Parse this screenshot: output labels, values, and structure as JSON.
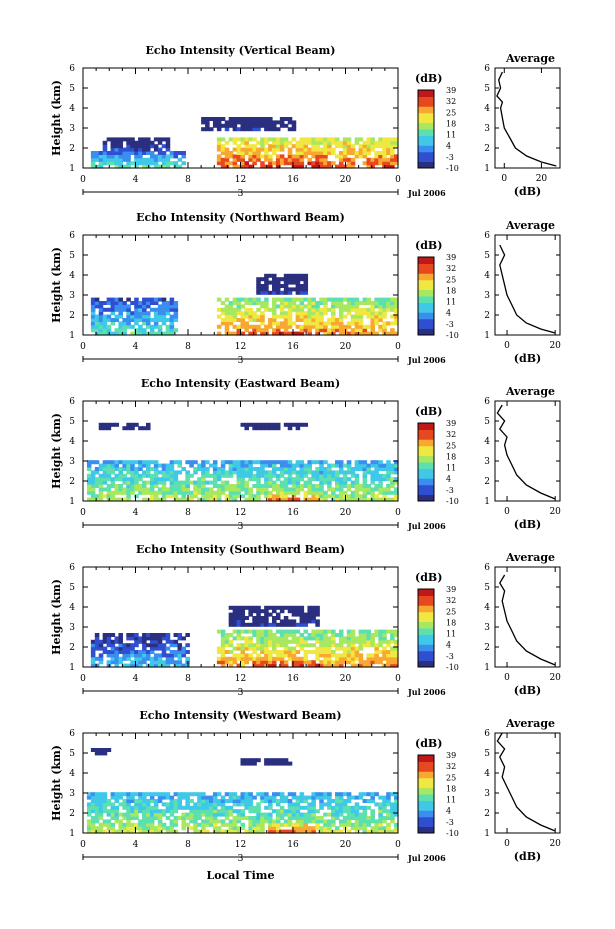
{
  "chart_data": {
    "type": "heatmap",
    "x_unit_label": "Local Time",
    "date_label": "Jul 2006",
    "time_ticks": [
      "0",
      "4",
      "8",
      "12",
      "16",
      "20",
      "0"
    ],
    "time_range": [
      0,
      24
    ],
    "day_label": "3",
    "height_ticks": [
      "1",
      "2",
      "3",
      "4",
      "5",
      "6"
    ],
    "height_range": [
      1,
      6
    ],
    "ylabel": "Height (km)",
    "colorbar": {
      "unit_label": "(dB)",
      "ticks": [
        "39",
        "32",
        "25",
        "18",
        "11",
        "4",
        "-3",
        "-10"
      ],
      "range": [
        -10,
        39
      ],
      "colormap": [
        "#2b2f7f",
        "#2f4fd0",
        "#3a8ef0",
        "#3fc8e8",
        "#5ce0b0",
        "#a8e860",
        "#f0e840",
        "#f8a830",
        "#e84820",
        "#c01818"
      ]
    },
    "panels": [
      {
        "title": "Echo Intensity (Vertical Beam)",
        "avg_title": "Average",
        "avg_xlabel": "(dB)",
        "avg_xticks": [
          "0",
          "20"
        ],
        "avg_xtick_values": [
          0,
          20
        ],
        "avg_xrange": [
          -5,
          30
        ],
        "avg_profile": {
          "height": [
            1.1,
            1.3,
            1.6,
            2.0,
            2.5,
            3.0,
            3.5,
            4.0,
            4.3,
            4.6,
            5.0,
            5.4,
            5.8
          ],
          "db": [
            28,
            20,
            12,
            6,
            3,
            0,
            -1,
            -2,
            -1,
            -4,
            -2,
            -3,
            -1
          ]
        },
        "echo_regions": [
          {
            "t": [
              0.5,
              7.5
            ],
            "h": [
              1.0,
              1.8
            ],
            "peak_db": 12
          },
          {
            "t": [
              1.5,
              6.5
            ],
            "h": [
              1.8,
              2.5
            ],
            "peak_db": -3
          },
          {
            "t": [
              10,
              24
            ],
            "h": [
              1.0,
              2.5
            ],
            "peak_db": 32
          },
          {
            "t": [
              14,
              18
            ],
            "h": [
              1.0,
              1.4
            ],
            "peak_db": 37
          },
          {
            "t": [
              9,
              16
            ],
            "h": [
              2.8,
              3.4
            ],
            "peak_db": -5
          }
        ]
      },
      {
        "title": "Echo Intensity (Northward Beam)",
        "avg_title": "Average",
        "avg_xlabel": "(dB)",
        "avg_xticks": [
          "0",
          "20"
        ],
        "avg_xtick_values": [
          0,
          20
        ],
        "avg_xrange": [
          -5,
          22
        ],
        "avg_profile": {
          "height": [
            1.1,
            1.3,
            1.6,
            2.0,
            2.5,
            3.0,
            3.5,
            4.0,
            4.5,
            5.0,
            5.5
          ],
          "db": [
            20,
            14,
            8,
            4,
            2,
            0,
            -1,
            -2,
            -3,
            -1,
            -3
          ]
        },
        "echo_regions": [
          {
            "t": [
              0.5,
              7
            ],
            "h": [
              1.0,
              2.8
            ],
            "peak_db": 11
          },
          {
            "t": [
              10,
              24
            ],
            "h": [
              1.0,
              2.8
            ],
            "peak_db": 28
          },
          {
            "t": [
              14,
              18
            ],
            "h": [
              1.0,
              1.5
            ],
            "peak_db": 33
          },
          {
            "t": [
              13,
              17
            ],
            "h": [
              3.0,
              4.0
            ],
            "peak_db": -6
          }
        ]
      },
      {
        "title": "Echo Intensity (Eastward Beam)",
        "avg_title": "Average",
        "avg_xlabel": "(dB)",
        "avg_xticks": [
          "0",
          "20"
        ],
        "avg_xtick_values": [
          0,
          20
        ],
        "avg_xrange": [
          -5,
          22
        ],
        "avg_profile": {
          "height": [
            1.1,
            1.4,
            1.8,
            2.3,
            2.8,
            3.3,
            3.8,
            4.2,
            4.6,
            5.0,
            5.4,
            5.8
          ],
          "db": [
            20,
            14,
            8,
            4,
            2,
            0,
            -1,
            0,
            -3,
            -1,
            -4,
            -2
          ]
        },
        "echo_regions": [
          {
            "t": [
              0.3,
              24
            ],
            "h": [
              1.0,
              3.0
            ],
            "peak_db": 18
          },
          {
            "t": [
              0.3,
              24
            ],
            "h": [
              2.3,
              2.9
            ],
            "peak_db": 4
          },
          {
            "t": [
              14,
              18
            ],
            "h": [
              1.0,
              1.5
            ],
            "peak_db": 28
          },
          {
            "t": [
              12,
              17
            ],
            "h": [
              4.4,
              4.9
            ],
            "peak_db": -6
          },
          {
            "t": [
              1,
              5
            ],
            "h": [
              4.4,
              4.9
            ],
            "peak_db": -8
          }
        ]
      },
      {
        "title": "Echo Intensity (Southward Beam)",
        "avg_title": "Average",
        "avg_xlabel": "(dB)",
        "avg_xticks": [
          "0",
          "20"
        ],
        "avg_xtick_values": [
          0,
          20
        ],
        "avg_xrange": [
          -5,
          22
        ],
        "avg_profile": {
          "height": [
            1.1,
            1.4,
            1.8,
            2.3,
            2.8,
            3.3,
            3.8,
            4.3,
            4.8,
            5.2,
            5.6
          ],
          "db": [
            20,
            14,
            8,
            4,
            2,
            0,
            -1,
            -2,
            -1,
            -3,
            -1
          ]
        },
        "echo_regions": [
          {
            "t": [
              0.5,
              8
            ],
            "h": [
              1.0,
              2.6
            ],
            "peak_db": 6
          },
          {
            "t": [
              10,
              24
            ],
            "h": [
              1.0,
              2.7
            ],
            "peak_db": 28
          },
          {
            "t": [
              13,
              18
            ],
            "h": [
              1.0,
              1.5
            ],
            "peak_db": 32
          },
          {
            "t": [
              11,
              18
            ],
            "h": [
              3.0,
              4.0
            ],
            "peak_db": -6
          }
        ]
      },
      {
        "title": "Echo Intensity (Westward Beam)",
        "avg_title": "Average",
        "avg_xlabel": "(dB)",
        "avg_xticks": [
          "0",
          "20"
        ],
        "avg_xtick_values": [
          0,
          20
        ],
        "avg_xrange": [
          -5,
          22
        ],
        "avg_profile": {
          "height": [
            1.1,
            1.4,
            1.8,
            2.3,
            2.8,
            3.3,
            3.8,
            4.3,
            4.8,
            5.2,
            5.6,
            6.0
          ],
          "db": [
            20,
            14,
            8,
            4,
            2,
            0,
            -2,
            -1,
            -3,
            -1,
            -4,
            -2
          ]
        },
        "echo_regions": [
          {
            "t": [
              0.3,
              24
            ],
            "h": [
              1.0,
              3.0
            ],
            "peak_db": 18
          },
          {
            "t": [
              14,
              18
            ],
            "h": [
              1.0,
              1.5
            ],
            "peak_db": 30
          },
          {
            "t": [
              12,
              16
            ],
            "h": [
              4.3,
              4.7
            ],
            "peak_db": -8
          },
          {
            "t": [
              0.5,
              2
            ],
            "h": [
              4.8,
              5.1
            ],
            "peak_db": -8
          }
        ]
      }
    ]
  }
}
